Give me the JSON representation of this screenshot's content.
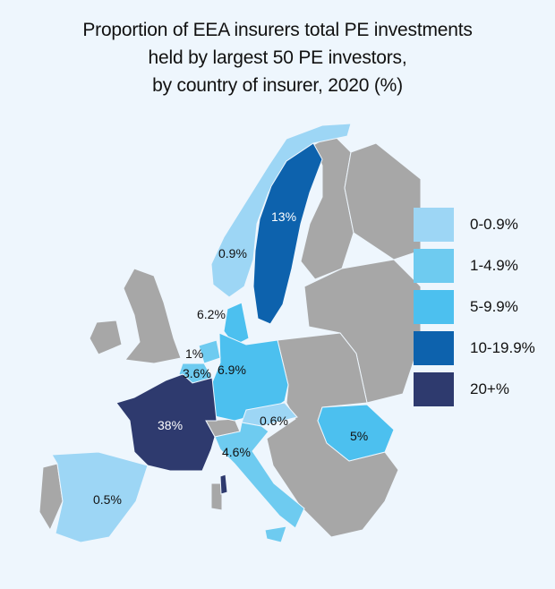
{
  "title": [
    "Proportion of EEA insurers total PE investments",
    "held by largest 50 PE investors,",
    "by country of insurer, 2020 (%)"
  ],
  "legend": [
    {
      "label": "0-0.9%",
      "color": "#9dd6f5"
    },
    {
      "label": "1-4.9%",
      "color": "#6ecbf0"
    },
    {
      "label": "5-9.9%",
      "color": "#4cc0ef"
    },
    {
      "label": "10-19.9%",
      "color": "#0d62ad"
    },
    {
      "label": "20+%",
      "color": "#2e3a6e"
    }
  ],
  "no_data_color": "#a7a7a7",
  "countries": {
    "norway": {
      "value": "0.9%",
      "bin": 0
    },
    "sweden": {
      "value": "13%",
      "bin": 3
    },
    "denmark": {
      "value": "6.2%",
      "bin": 2
    },
    "netherlands": {
      "value": "1%",
      "bin": 1
    },
    "belgium": {
      "value": "3.6%",
      "bin": 1
    },
    "germany": {
      "value": "6.9%",
      "bin": 2
    },
    "france": {
      "value": "38%",
      "bin": 4
    },
    "austria": {
      "value": "0.6%",
      "bin": 0
    },
    "romania": {
      "value": "5%",
      "bin": 2
    },
    "italy": {
      "value": "4.6%",
      "bin": 1
    },
    "spain": {
      "value": "0.5%",
      "bin": 0
    }
  }
}
